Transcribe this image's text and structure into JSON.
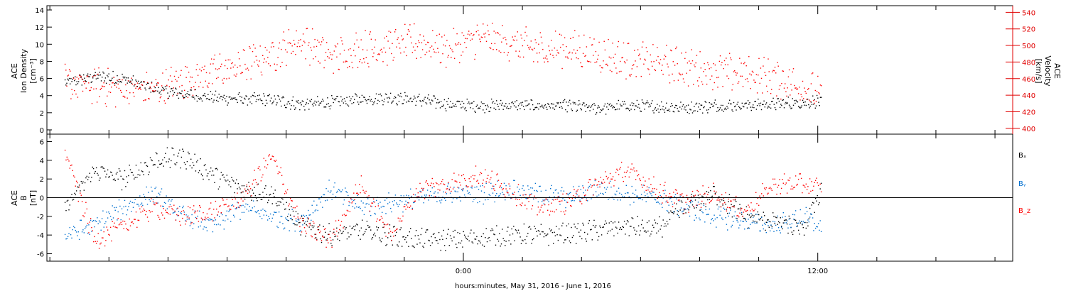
{
  "chart_data": [
    {
      "type": "scatter",
      "panel": "top",
      "ylabel_left": [
        "ACE",
        "Ion Density",
        "[cm⁻³]"
      ],
      "ylabel_right": [
        "ACE",
        "Velocity",
        "[km/s]"
      ],
      "yticks_left": [
        "0",
        "2",
        "4",
        "6",
        "8",
        "10",
        "12",
        "14"
      ],
      "ylim_left": [
        -0.5,
        14.5
      ],
      "yticks_right": [
        "400",
        "420",
        "440",
        "460",
        "480",
        "500",
        "520",
        "540"
      ],
      "ylim_right": [
        393,
        548
      ],
      "grid": false,
      "series": [
        {
          "color": "#000000",
          "axis": "left",
          "x": [
            -13.5,
            -12.5,
            -11.5,
            -10.5,
            -9.5,
            -8.5,
            -7.5,
            -6.5,
            -5.5,
            -4.5,
            -3.5,
            -2.5,
            -1.5,
            -0.5,
            0.5,
            1.5,
            2.5,
            3.5,
            4.5,
            5.5,
            6.5,
            7.5,
            8.5,
            9.5,
            10.5,
            11.5,
            12.1
          ],
          "y": [
            5.5,
            6.3,
            6.0,
            4.8,
            4.2,
            3.8,
            3.6,
            3.5,
            3.0,
            3.2,
            3.6,
            3.8,
            3.5,
            3.0,
            2.8,
            2.9,
            2.8,
            2.8,
            2.5,
            2.8,
            2.7,
            2.6,
            2.8,
            2.9,
            3.0,
            3.2,
            3.4
          ]
        },
        {
          "color": "#ff0000",
          "axis": "right",
          "x": [
            -13.5,
            -12.5,
            -11.5,
            -10.5,
            -9.5,
            -8.5,
            -7.5,
            -6.5,
            -5.5,
            -4.5,
            -3.5,
            -2.5,
            -1.5,
            -0.5,
            0.5,
            1.5,
            2.5,
            3.5,
            4.5,
            5.5,
            6.5,
            7.5,
            8.5,
            9.5,
            10.5,
            11.5,
            12.1
          ],
          "y": [
            455,
            451,
            448,
            446,
            458,
            468,
            476,
            490,
            508,
            487,
            496,
            500,
            505,
            496,
            510,
            504,
            495,
            498,
            490,
            483,
            480,
            475,
            470,
            466,
            462,
            450,
            440
          ]
        }
      ]
    },
    {
      "type": "scatter",
      "panel": "bottom",
      "ylabel": [
        "ACE",
        "B",
        "[nT]"
      ],
      "yticks": [
        "-6",
        "-4",
        "-2",
        "0",
        "2",
        "4",
        "6"
      ],
      "ylim": [
        -6.8,
        6.8
      ],
      "zero_line": true,
      "legend_placement": "right",
      "series": [
        {
          "name": "Bₓ",
          "color": "#000000",
          "x": [
            -13.5,
            -12.5,
            -11.5,
            -10.5,
            -9.5,
            -8.5,
            -7.5,
            -6.5,
            -5.5,
            -4.5,
            -3.5,
            -2.5,
            -1.5,
            -0.5,
            0.5,
            1.5,
            2.5,
            3.5,
            4.5,
            5.5,
            6.5,
            7.5,
            8.5,
            9.5,
            10.5,
            11.5,
            12.1
          ],
          "y": [
            -1.0,
            3.0,
            2.0,
            4.0,
            4.5,
            2.5,
            1.0,
            0.5,
            -3.0,
            -4.0,
            -3.5,
            -4.0,
            -4.5,
            -4.5,
            -4.3,
            -4.0,
            -4.0,
            -3.8,
            -3.5,
            -3.0,
            -3.5,
            -1.0,
            0.5,
            -2.0,
            -2.5,
            -3.5,
            1.0
          ]
        },
        {
          "name": "Bᵧ",
          "color": "#0070d0",
          "x": [
            -13.5,
            -12.5,
            -11.5,
            -10.5,
            -9.5,
            -8.5,
            -7.5,
            -6.5,
            -5.5,
            -4.5,
            -3.5,
            -2.5,
            -1.5,
            -0.5,
            0.5,
            1.5,
            2.5,
            3.5,
            4.5,
            5.5,
            6.5,
            7.5,
            8.5,
            9.5,
            10.5,
            11.5,
            12.1
          ],
          "y": [
            -4.0,
            -3.0,
            -1.0,
            0.5,
            -2.0,
            -3.0,
            -1.0,
            -2.0,
            -2.5,
            1.0,
            -1.0,
            -0.5,
            0.0,
            0.5,
            0.5,
            1.0,
            0.5,
            0.0,
            1.0,
            0.5,
            0.0,
            -1.0,
            -2.0,
            -2.5,
            -3.0,
            -2.0,
            -3.2
          ]
        },
        {
          "name": "B_z",
          "color": "#ff0000",
          "x": [
            -13.5,
            -12.5,
            -11.5,
            -10.5,
            -9.5,
            -8.5,
            -7.5,
            -6.5,
            -5.5,
            -4.5,
            -3.5,
            -2.5,
            -1.5,
            -0.5,
            0.5,
            1.5,
            2.5,
            3.5,
            4.5,
            5.5,
            6.5,
            7.5,
            8.5,
            9.5,
            10.5,
            11.5,
            12.1
          ],
          "y": [
            5.0,
            -4.5,
            -3.0,
            -1.0,
            -2.0,
            -1.5,
            0.0,
            4.5,
            -3.0,
            -4.5,
            1.5,
            -4.0,
            1.0,
            1.5,
            2.5,
            1.0,
            -1.0,
            -0.5,
            1.5,
            3.0,
            1.0,
            -0.5,
            0.5,
            -1.5,
            1.5,
            1.5,
            1.0
          ]
        }
      ]
    }
  ],
  "x_axis": {
    "label": "hours:minutes, May 31, 2016 - June  1, 2016",
    "unit": "hours relative to 00:00 June 1, 2016",
    "range": [
      -14.1,
      18.6
    ],
    "tick_labels": [
      {
        "x": 0,
        "text": "0:00"
      },
      {
        "x": 12,
        "text": "12:00"
      }
    ],
    "minor_tick_step": 2
  }
}
